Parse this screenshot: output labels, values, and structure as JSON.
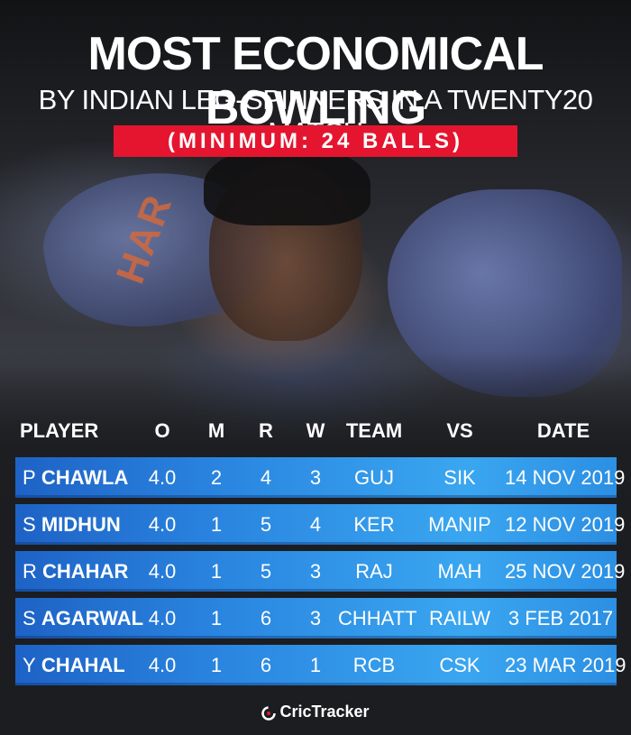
{
  "header": {
    "title": "MOST ECONOMICAL BOWLING",
    "subtitle": "BY INDIAN LEG-SPINNERS IN A TWENTY20 MATCH",
    "badge": "(MINIMUM: 24 BALLS)"
  },
  "table": {
    "columns": {
      "player": "PLAYER",
      "overs": "O",
      "maidens": "M",
      "runs": "R",
      "wickets": "W",
      "team": "TEAM",
      "vs": "VS",
      "date": "DATE"
    },
    "rows": [
      {
        "initial": "P",
        "surname": "CHAWLA",
        "overs": "4.0",
        "maidens": "2",
        "runs": "4",
        "wickets": "3",
        "team": "GUJ",
        "vs": "SIK",
        "date": "14 NOV 2019"
      },
      {
        "initial": "S",
        "surname": "MIDHUN",
        "overs": "4.0",
        "maidens": "1",
        "runs": "5",
        "wickets": "4",
        "team": "KER",
        "vs": "MANIP",
        "date": "12 NOV 2019"
      },
      {
        "initial": "R",
        "surname": "CHAHAR",
        "overs": "4.0",
        "maidens": "1",
        "runs": "5",
        "wickets": "3",
        "team": "RAJ",
        "vs": "MAH",
        "date": "25 NOV 2019"
      },
      {
        "initial": "S",
        "surname": "AGARWAL",
        "overs": "4.0",
        "maidens": "1",
        "runs": "6",
        "wickets": "3",
        "team": "CHHATT",
        "vs": "RAILW",
        "date": "3 FEB 2017"
      },
      {
        "initial": "Y",
        "surname": "CHAHAL",
        "overs": "4.0",
        "maidens": "1",
        "runs": "6",
        "wickets": "1",
        "team": "RCB",
        "vs": "CSK",
        "date": "23 MAR 2019"
      }
    ]
  },
  "footer": {
    "brand": "CricTracker"
  },
  "colors": {
    "badge": "#e5152f",
    "row_blue": "#2a86e0",
    "jersey_print": "#d8693a"
  }
}
